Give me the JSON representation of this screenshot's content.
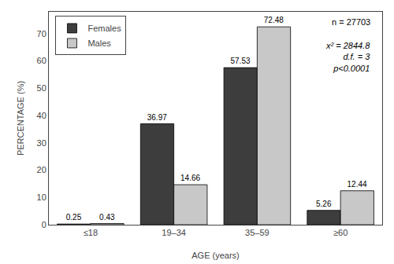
{
  "chart_data": {
    "type": "bar",
    "categories": [
      "≤18",
      "19–34",
      "35–59",
      "≥60"
    ],
    "series": [
      {
        "name": "Females",
        "color": "#3d3d3d",
        "values": [
          0.25,
          36.97,
          57.53,
          5.26
        ]
      },
      {
        "name": "Males",
        "color": "#c8c8c8",
        "values": [
          0.43,
          14.66,
          72.48,
          12.44
        ]
      }
    ],
    "xlabel": "AGE (years)",
    "ylabel": "PERCENTAGE (%)",
    "ylim": [
      0,
      78
    ],
    "yticks": [
      0,
      10,
      20,
      30,
      40,
      50,
      60,
      70
    ],
    "grid": false,
    "legend": "upper left",
    "data_labels": true,
    "annotations": [
      "n = 27703",
      "x² = 2844.8",
      "d.f. = 3",
      "p<0.0001"
    ]
  }
}
